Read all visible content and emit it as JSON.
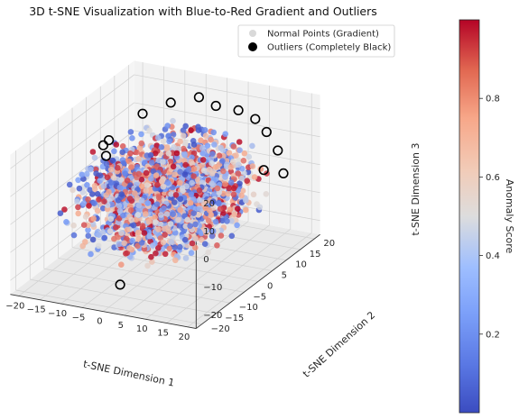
{
  "chart_data": {
    "type": "scatter",
    "projection": "3d",
    "title": "3D t-SNE Visualization with Blue-to-Red Gradient and Outliers",
    "xlabel": "t-SNE Dimension 1",
    "ylabel": "t-SNE Dimension 2",
    "zlabel": "t-SNE Dimension 3",
    "xlim": [
      -22,
      22
    ],
    "ylim": [
      -22,
      22
    ],
    "zlim": [
      -25,
      25
    ],
    "xticks": [
      "−20",
      "−15",
      "−10",
      "−5",
      "0",
      "5",
      "10",
      "15",
      "20"
    ],
    "yticks": [
      "−20",
      "−15",
      "−10",
      "−5",
      "0",
      "5",
      "10",
      "15",
      "20"
    ],
    "zticks": [
      "−20",
      "−10",
      "0",
      "10",
      "20"
    ],
    "grid": true,
    "colormap": "coolwarm",
    "color_low": "#3b4cc0",
    "color_mid": "#dddddd",
    "color_high": "#b40426",
    "colorbar": {
      "label": "Anomaly Score",
      "range": [
        0.0,
        1.0
      ],
      "ticks": [
        "0.2",
        "0.4",
        "0.6",
        "0.8"
      ]
    },
    "legend": {
      "placement": "top-right",
      "entries": [
        "Normal Points (Gradient)",
        "Outliers (Completely Black)"
      ]
    },
    "series": [
      {
        "name": "Normal Points (Gradient)",
        "marker": "filled circle",
        "count_estimate": 2000,
        "distribution": "roughly spherical cloud centred at the origin, radius about 20 in each t-SNE dimension",
        "points": [
          [
            0,
            0,
            0,
            0.5
          ],
          [
            5,
            5,
            10,
            0.2
          ],
          [
            -5,
            8,
            -5,
            0.8
          ],
          [
            10,
            -5,
            5,
            0.3
          ],
          [
            -10,
            -10,
            8,
            0.7
          ],
          [
            12,
            8,
            -10,
            0.9
          ],
          [
            -8,
            12,
            12,
            0.1
          ],
          [
            3,
            -12,
            -8,
            0.6
          ],
          [
            -15,
            0,
            2,
            0.4
          ],
          [
            15,
            2,
            -3,
            0.85
          ],
          [
            0,
            15,
            6,
            0.25
          ],
          [
            2,
            -15,
            3,
            0.55
          ],
          [
            -3,
            2,
            18,
            0.35
          ],
          [
            4,
            -3,
            -18,
            0.75
          ],
          [
            18,
            -8,
            8,
            0.15
          ],
          [
            -18,
            6,
            -6,
            0.95
          ]
        ]
      },
      {
        "name": "Outliers (Completely Black)",
        "marker": "hollow circle, black edge",
        "points": [
          [
            -12,
            10,
            18
          ],
          [
            -8,
            14,
            20
          ],
          [
            -4,
            18,
            20
          ],
          [
            0,
            18,
            18
          ],
          [
            4,
            20,
            16
          ],
          [
            8,
            20,
            14
          ],
          [
            12,
            18,
            12
          ],
          [
            16,
            16,
            8
          ],
          [
            20,
            12,
            4
          ],
          [
            -16,
            4,
            12
          ],
          [
            -14,
            0,
            10
          ],
          [
            0,
            -16,
            -20
          ],
          [
            14,
            14,
            2
          ],
          [
            -20,
            8,
            6
          ]
        ]
      }
    ]
  }
}
